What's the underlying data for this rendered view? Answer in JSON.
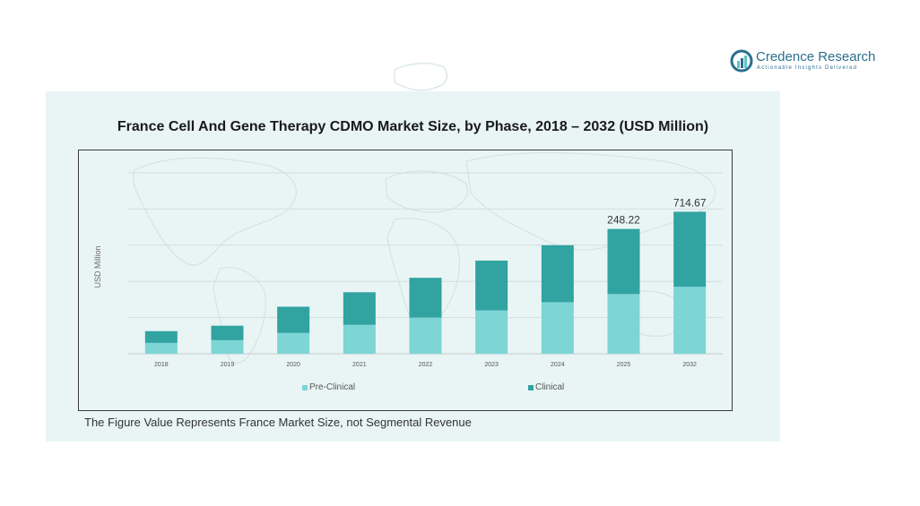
{
  "logo": {
    "name": "Credence Research",
    "tagline": "Actionable Insights Delivered"
  },
  "colors": {
    "pre_clinical": "#7dd5d5",
    "clinical": "#31a3a1",
    "brand": "#2b6f8e",
    "panel": "#e9f5f5"
  },
  "chart_data": {
    "type": "bar",
    "stacked": true,
    "title": "France Cell And Gene Therapy CDMO Market Size, by Phase, 2018 – 2032 (USD Million)",
    "xlabel": "",
    "ylabel": "USD Million",
    "categories": [
      "2018",
      "2019",
      "2020",
      "2021",
      "2022",
      "2023",
      "2024",
      "2025",
      "2032"
    ],
    "series": [
      {
        "name": "Pre-Clinical",
        "values": [
          12,
          15,
          23,
          32,
          40,
          48,
          57,
          66,
          74
        ]
      },
      {
        "name": "Clinical",
        "values": [
          13,
          16,
          29,
          36,
          44,
          55,
          63,
          72,
          83
        ]
      }
    ],
    "data_labels": {
      "7": "248.22",
      "8": "714.67"
    },
    "ylim": [
      0,
      200
    ],
    "grid": true,
    "legend": "bottom",
    "footnote": "The Figure Value Represents France Market Size, not Segmental Revenue"
  }
}
